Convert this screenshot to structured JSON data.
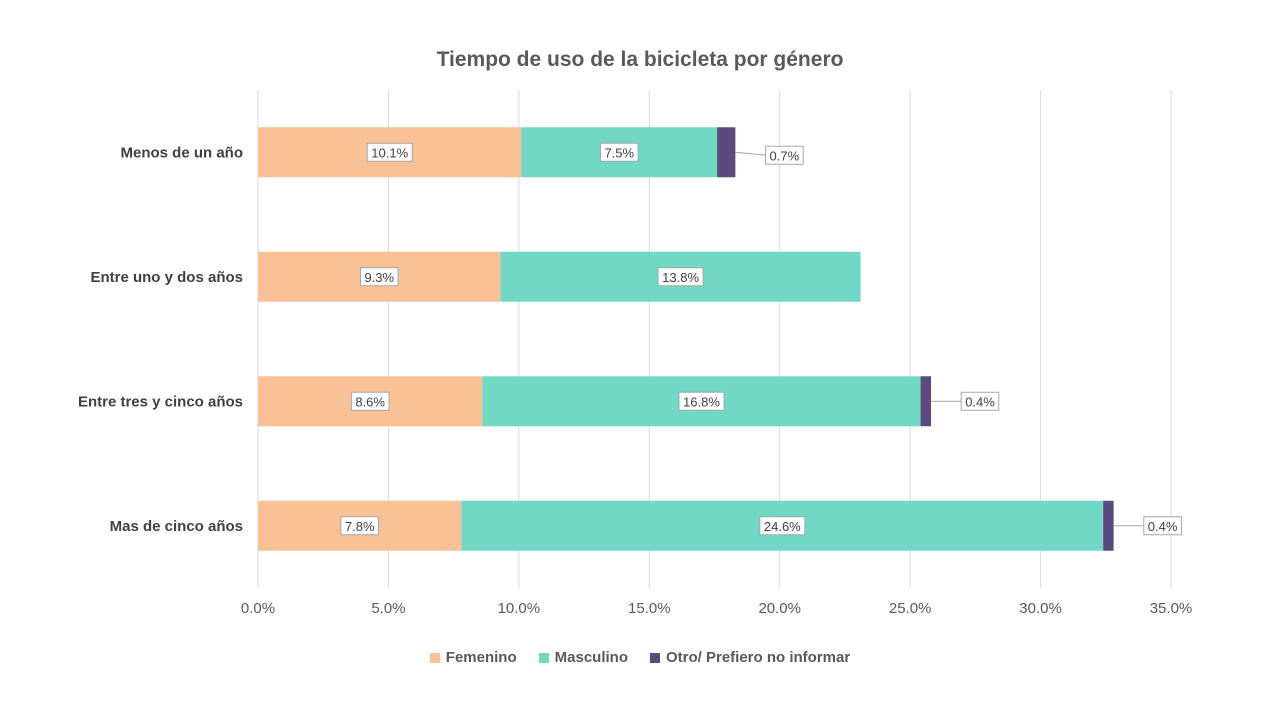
{
  "chart_data": {
    "type": "bar",
    "orientation": "horizontal",
    "stacked": true,
    "title": "Tiempo de uso de la bicicleta por género",
    "categories": [
      "Menos de un año",
      "Entre uno y dos años",
      "Entre tres y cinco años",
      "Mas de cinco años"
    ],
    "series": [
      {
        "name": "Femenino",
        "color": "#F9C196",
        "values": [
          10.1,
          9.3,
          8.6,
          7.8
        ],
        "labels": [
          "10.1%",
          "9.3%",
          "8.6%",
          "7.8%"
        ]
      },
      {
        "name": "Masculino",
        "color": "#72D8C6",
        "values": [
          7.5,
          13.8,
          16.8,
          24.6
        ],
        "labels": [
          "7.5%",
          "13.8%",
          "16.8%",
          "24.6%"
        ]
      },
      {
        "name": "Otro/ Prefiero no informar",
        "color": "#5C4A7D",
        "values": [
          0.7,
          0,
          0.4,
          0.4
        ],
        "labels": [
          "0.7%",
          "",
          "0.4%",
          "0.4%"
        ]
      }
    ],
    "xlim": [
      0,
      35
    ],
    "xticks": [
      "0.0%",
      "5.0%",
      "10.0%",
      "15.0%",
      "20.0%",
      "25.0%",
      "30.0%",
      "35.0%"
    ],
    "grid": true,
    "legend_position": "bottom"
  }
}
